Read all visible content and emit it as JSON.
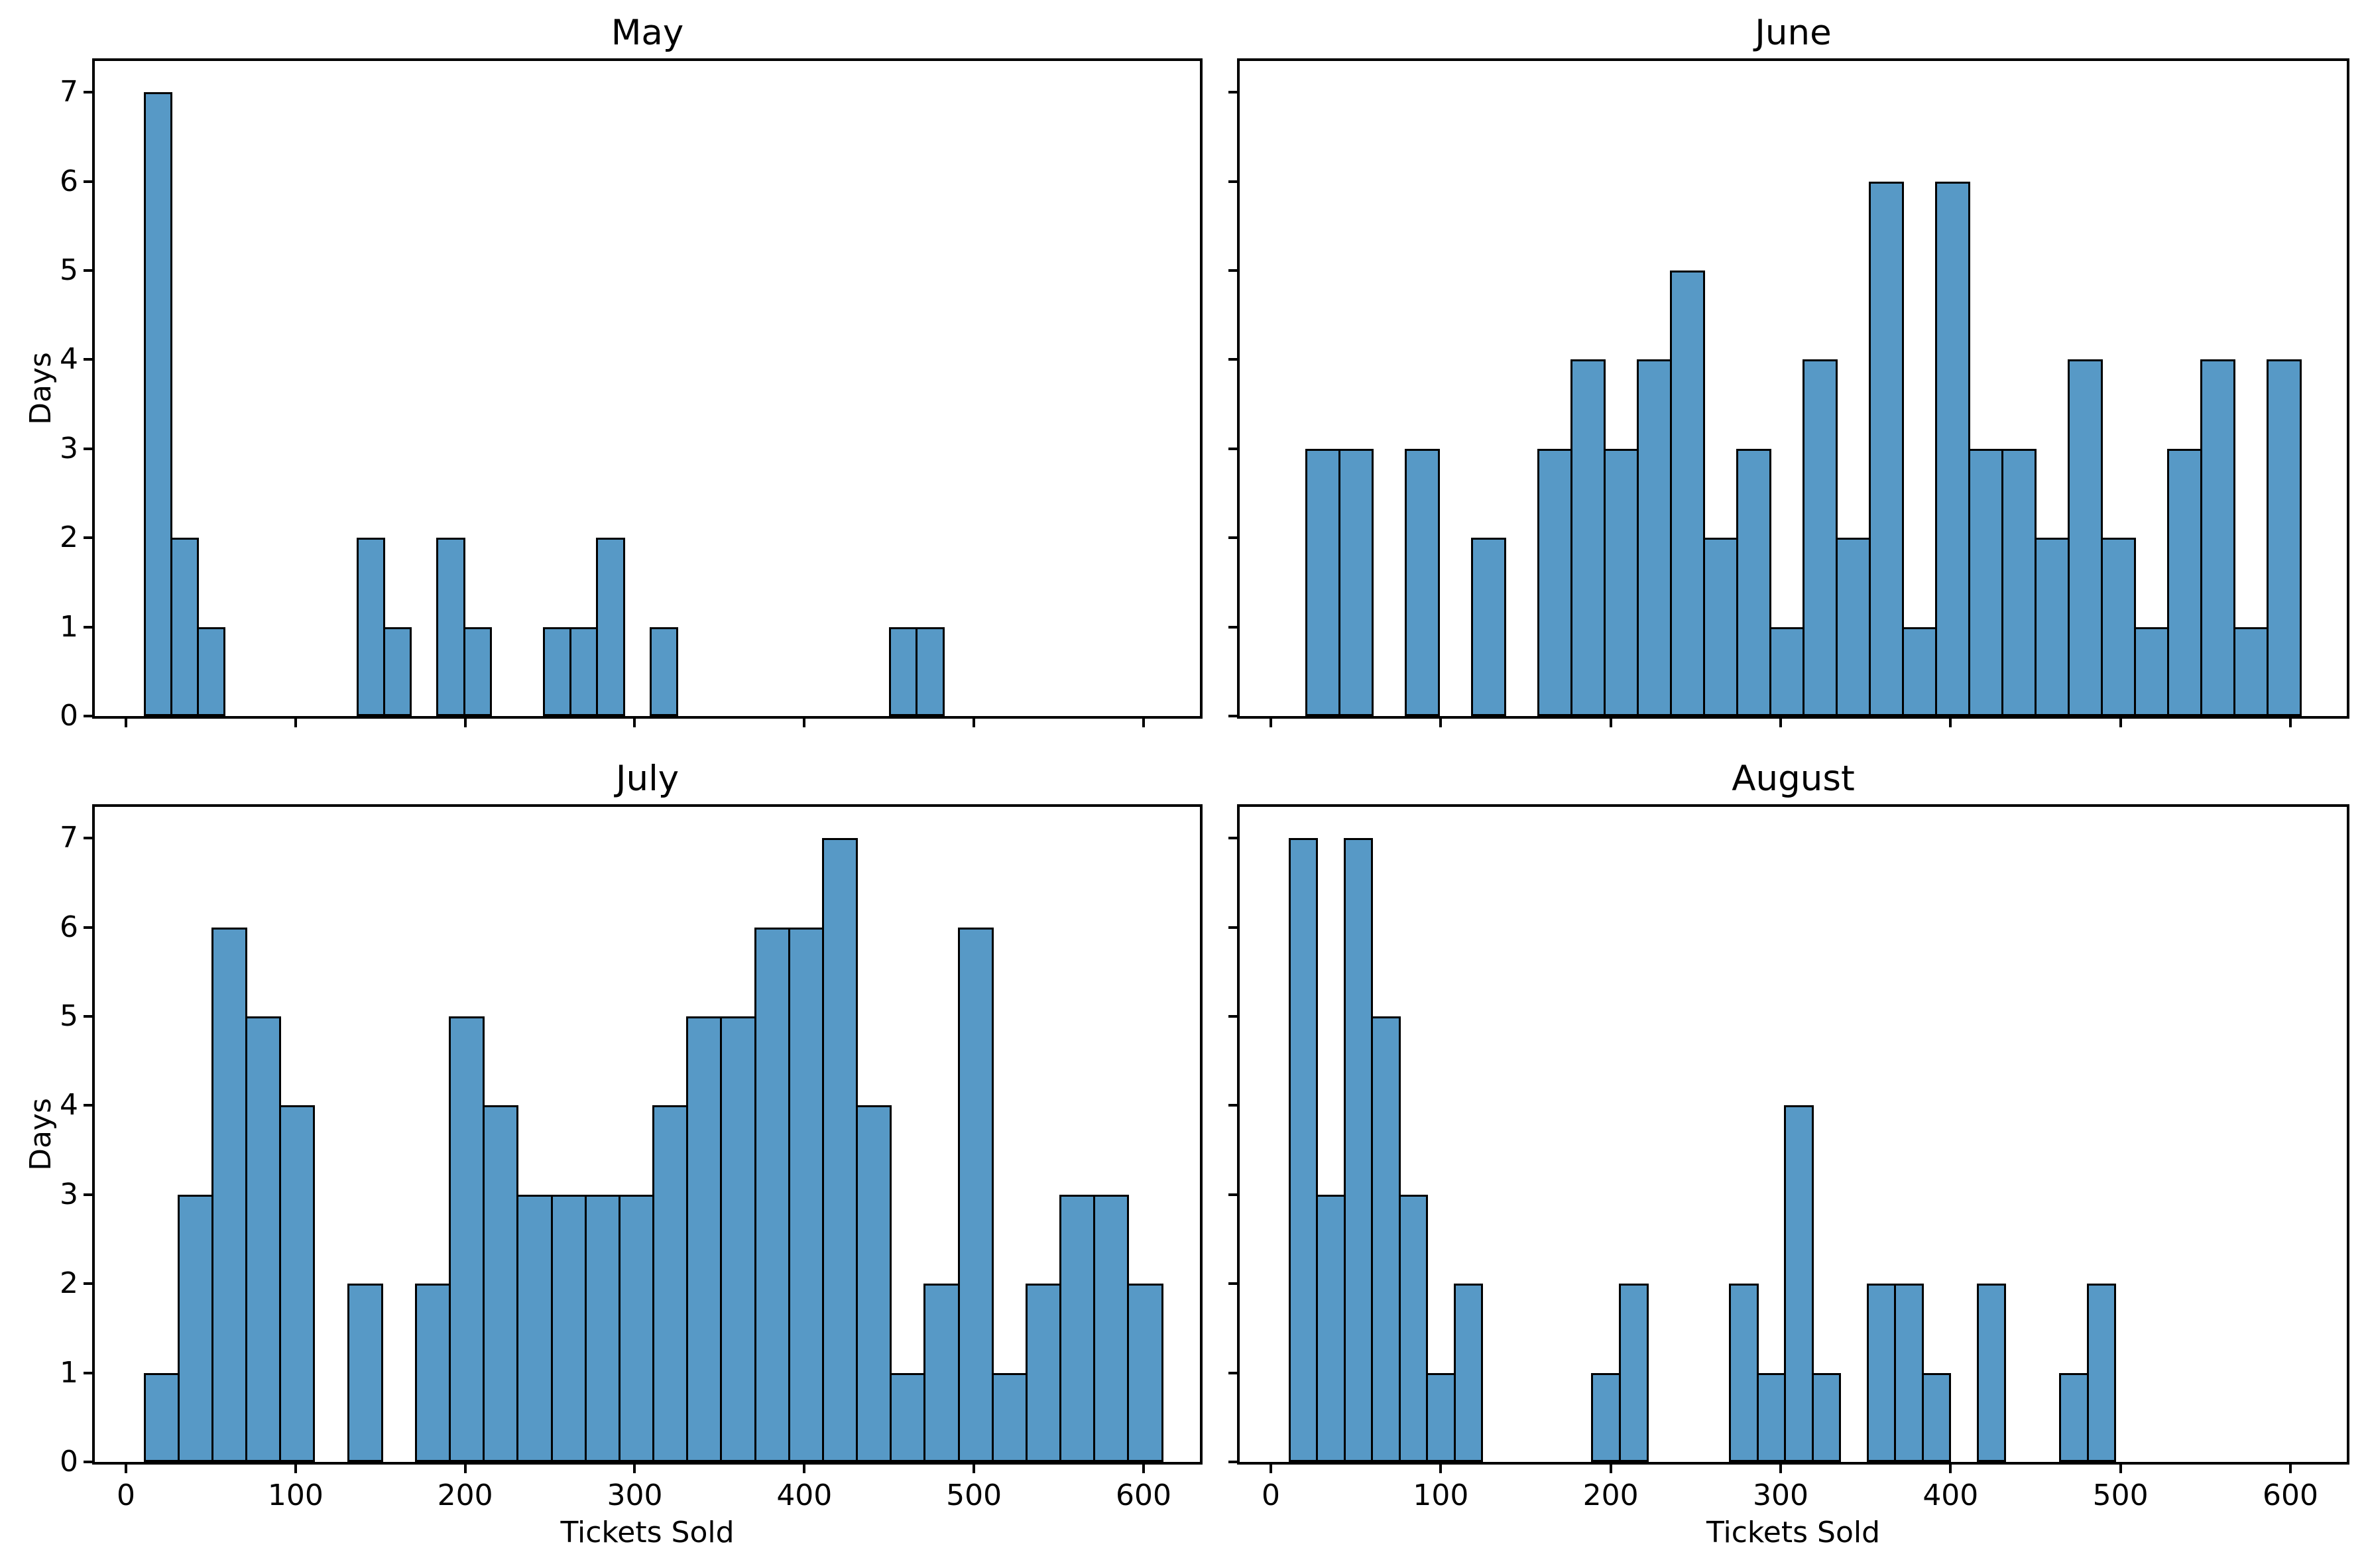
{
  "figure": {
    "background": "#ffffff"
  },
  "colors": {
    "bar_fill": "#5799C6",
    "bar_edge": "#000000",
    "spine": "#000000",
    "text": "#000000"
  },
  "axis": {
    "xlabel": "Tickets Sold",
    "ylabel": "Days",
    "x_ticks": [
      0,
      100,
      200,
      300,
      400,
      500,
      600
    ],
    "y_ticks": [
      0,
      1,
      2,
      3,
      4,
      5,
      6,
      7
    ],
    "xlim": [
      -18,
      633
    ],
    "ylim": [
      0,
      7.35
    ],
    "grid": false,
    "legend": "none"
  },
  "chart_data": [
    {
      "type": "histogram",
      "title": "May",
      "xlabel": "Tickets Sold",
      "ylabel": "Days",
      "bin_start": 11,
      "bin_width": 15.7,
      "counts": [
        7,
        2,
        1,
        0,
        0,
        0,
        0,
        0,
        2,
        1,
        0,
        2,
        1,
        0,
        0,
        1,
        1,
        2,
        0,
        1,
        0,
        0,
        0,
        0,
        0,
        0,
        0,
        0,
        1,
        1
      ],
      "show_x_tick_labels": false,
      "show_y_tick_labels": true
    },
    {
      "type": "histogram",
      "title": "June",
      "xlabel": "Tickets Sold",
      "ylabel": "Days",
      "bin_start": 21,
      "bin_width": 19.5,
      "counts": [
        3,
        3,
        0,
        3,
        0,
        2,
        0,
        3,
        4,
        3,
        4,
        5,
        2,
        3,
        1,
        4,
        2,
        6,
        1,
        6,
        3,
        3,
        2,
        4,
        2,
        1,
        3,
        4,
        1,
        4
      ],
      "show_x_tick_labels": false,
      "show_y_tick_labels": false
    },
    {
      "type": "histogram",
      "title": "July",
      "xlabel": "Tickets Sold",
      "ylabel": "Days",
      "bin_start": 11,
      "bin_width": 20,
      "counts": [
        1,
        3,
        6,
        5,
        4,
        0,
        2,
        0,
        2,
        5,
        4,
        3,
        3,
        3,
        3,
        4,
        5,
        5,
        6,
        6,
        7,
        4,
        1,
        2,
        6,
        1,
        2,
        3,
        3,
        2
      ],
      "show_x_tick_labels": true,
      "show_y_tick_labels": true
    },
    {
      "type": "histogram",
      "title": "August",
      "xlabel": "Tickets Sold",
      "ylabel": "Days",
      "bin_start": 11,
      "bin_width": 16.2,
      "counts": [
        7,
        3,
        7,
        5,
        3,
        1,
        2,
        0,
        0,
        0,
        0,
        1,
        2,
        0,
        0,
        0,
        2,
        1,
        4,
        1,
        0,
        2,
        2,
        1,
        0,
        2,
        0,
        0,
        1,
        2
      ],
      "show_x_tick_labels": true,
      "show_y_tick_labels": false
    }
  ]
}
